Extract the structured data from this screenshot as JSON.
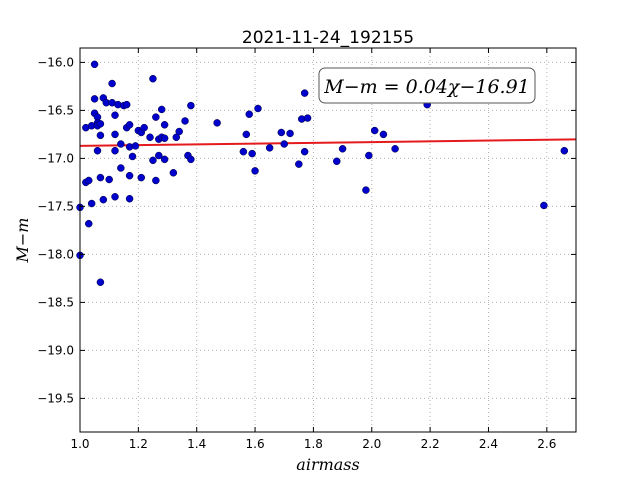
{
  "chart_data": {
    "type": "scatter",
    "title": "2021-11-24_192155",
    "xlabel": "airmass",
    "ylabel": "M−m",
    "annotation": "M−m = 0.04χ−16.91",
    "xlim": [
      1.0,
      2.7
    ],
    "ylim": [
      -19.85,
      -15.85
    ],
    "y_inverted": true,
    "grid": true,
    "xticks": [
      1.0,
      1.2,
      1.4,
      1.6,
      1.8,
      2.0,
      2.2,
      2.4,
      2.6
    ],
    "xtick_labels": [
      "1.0",
      "1.2",
      "1.4",
      "1.6",
      "1.8",
      "2.0",
      "2.2",
      "2.4",
      "2.6"
    ],
    "yticks": [
      -16.0,
      -16.5,
      -17.0,
      -17.5,
      -18.0,
      -18.5,
      -19.0,
      -19.5
    ],
    "ytick_labels": [
      "−16.0",
      "−16.5",
      "−17.0",
      "−17.5",
      "−18.0",
      "−18.5",
      "−19.0",
      "−19.5"
    ],
    "fit": {
      "slope": 0.04,
      "intercept": -16.91,
      "color": "#e41a1c"
    },
    "points_color": "#0000cc",
    "x": [
      1.0,
      1.0,
      1.02,
      1.02,
      1.03,
      1.03,
      1.04,
      1.04,
      1.05,
      1.05,
      1.05,
      1.06,
      1.06,
      1.06,
      1.06,
      1.07,
      1.07,
      1.07,
      1.07,
      1.08,
      1.08,
      1.09,
      1.1,
      1.11,
      1.11,
      1.12,
      1.12,
      1.12,
      1.12,
      1.13,
      1.14,
      1.14,
      1.15,
      1.16,
      1.16,
      1.17,
      1.17,
      1.17,
      1.17,
      1.18,
      1.19,
      1.2,
      1.21,
      1.21,
      1.22,
      1.24,
      1.25,
      1.25,
      1.26,
      1.26,
      1.27,
      1.27,
      1.28,
      1.28,
      1.29,
      1.29,
      1.29,
      1.32,
      1.33,
      1.34,
      1.36,
      1.37,
      1.38,
      1.38,
      1.47,
      1.56,
      1.57,
      1.58,
      1.59,
      1.6,
      1.61,
      1.65,
      1.69,
      1.7,
      1.72,
      1.75,
      1.76,
      1.77,
      1.77,
      1.78,
      1.88,
      1.9,
      1.98,
      1.99,
      2.01,
      2.04,
      2.08,
      2.19,
      2.59,
      2.66
    ],
    "y": [
      -17.51,
      -18.01,
      -16.68,
      -17.25,
      -17.23,
      -17.68,
      -16.66,
      -17.47,
      -16.02,
      -16.38,
      -16.53,
      -16.57,
      -16.63,
      -16.66,
      -16.92,
      -16.64,
      -16.76,
      -17.2,
      -18.29,
      -17.43,
      -16.37,
      -16.42,
      -17.22,
      -16.22,
      -16.42,
      -16.55,
      -16.75,
      -16.92,
      -17.4,
      -16.44,
      -16.85,
      -17.1,
      -16.45,
      -16.44,
      -16.68,
      -16.65,
      -16.88,
      -17.18,
      -17.42,
      -16.98,
      -16.87,
      -16.71,
      -17.2,
      -16.73,
      -16.68,
      -16.78,
      -16.17,
      -17.02,
      -16.57,
      -17.23,
      -16.97,
      -16.8,
      -16.49,
      -16.78,
      -16.65,
      -16.79,
      -17.01,
      -17.15,
      -16.78,
      -16.72,
      -16.61,
      -16.97,
      -16.45,
      -17.01,
      -16.63,
      -16.93,
      -16.75,
      -16.54,
      -16.95,
      -17.13,
      -16.48,
      -16.89,
      -16.73,
      -16.85,
      -16.74,
      -17.06,
      -16.59,
      -16.93,
      -16.32,
      -16.58,
      -17.03,
      -16.9,
      -17.33,
      -16.97,
      -16.71,
      -16.75,
      -16.9,
      -16.44,
      -17.49,
      -16.92
    ]
  }
}
